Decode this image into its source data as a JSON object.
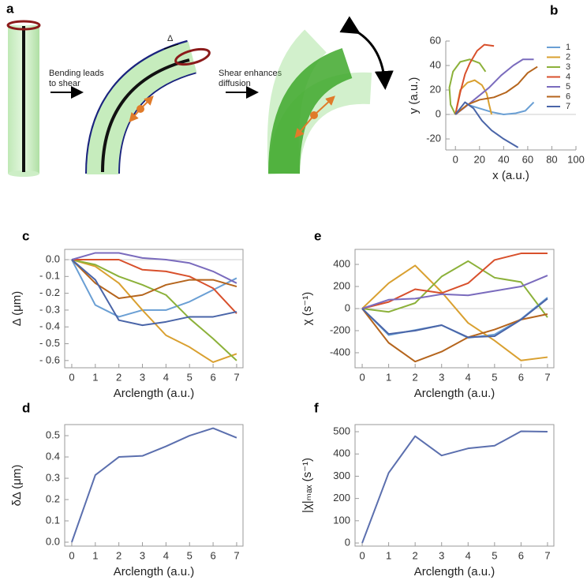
{
  "panel_a": {
    "label": "a",
    "step1": [
      "Bending leads",
      "to shear"
    ],
    "step2": [
      "Shear enhances",
      "diffusion"
    ],
    "delta": "Δ"
  },
  "chart_data": [
    {
      "type": "line",
      "panel": "b",
      "x_label": "x (a.u.)",
      "y_label": "y (a.u.)",
      "xlim": [
        -8,
        100
      ],
      "ylim": [
        -29,
        60
      ],
      "xticks": [
        0,
        20,
        40,
        60,
        80,
        100
      ],
      "yticks": [
        -20,
        0,
        20,
        40,
        60
      ],
      "frame": false,
      "zero_line": true,
      "legend": "top-right",
      "series": [
        {
          "name": "1",
          "color": "#6a9fd4",
          "x": [
            0,
            10,
            20,
            30,
            40,
            50,
            58,
            65
          ],
          "values": [
            0,
            8,
            5,
            2,
            0,
            1,
            3,
            10
          ]
        },
        {
          "name": "2",
          "color": "#d9a030",
          "x": [
            0,
            4,
            10,
            16,
            22,
            26,
            28,
            30
          ],
          "values": [
            0,
            20,
            26,
            28,
            24,
            17,
            8,
            0
          ]
        },
        {
          "name": "3",
          "color": "#8cb13a",
          "x": [
            0,
            -4,
            -5,
            -2,
            4,
            12,
            20,
            25
          ],
          "values": [
            0,
            8,
            22,
            35,
            43,
            45,
            42,
            35
          ]
        },
        {
          "name": "4",
          "color": "#d8502c",
          "x": [
            0,
            4,
            8,
            12,
            18,
            24,
            32
          ],
          "values": [
            0,
            18,
            33,
            42,
            52,
            57,
            56
          ]
        },
        {
          "name": "5",
          "color": "#7a6bbd",
          "x": [
            0,
            8,
            18,
            28,
            38,
            48,
            56,
            65
          ],
          "values": [
            0,
            6,
            14,
            22,
            32,
            40,
            45,
            45
          ]
        },
        {
          "name": "6",
          "color": "#b5651d",
          "x": [
            0,
            10,
            20,
            32,
            42,
            52,
            60,
            68
          ],
          "values": [
            0,
            8,
            12,
            14,
            18,
            25,
            34,
            39
          ]
        },
        {
          "name": "7",
          "color": "#4a65a8",
          "x": [
            0,
            8,
            15,
            22,
            30,
            40,
            52
          ],
          "values": [
            0,
            10,
            5,
            -5,
            -13,
            -20,
            -27
          ]
        }
      ]
    },
    {
      "type": "line",
      "panel": "c",
      "x_label": "Arclength (a.u.)",
      "y_label": "Δ (μm)",
      "x": [
        0,
        1,
        2,
        3,
        4,
        5,
        6,
        7
      ],
      "xlim": [
        -0.3,
        7.27
      ],
      "ylim": [
        -0.643,
        0.061
      ],
      "xticks": [
        0,
        1,
        2,
        3,
        4,
        5,
        6,
        7
      ],
      "yticks": [
        {
          "value": 0,
          "label": "0.0"
        },
        {
          "value": -0.1,
          "label": "- 0.1"
        },
        {
          "value": -0.2,
          "label": "- 0.2"
        },
        {
          "value": -0.3,
          "label": "- 0.3"
        },
        {
          "value": -0.4,
          "label": "- 0.4"
        },
        {
          "value": -0.5,
          "label": "- 0.5"
        },
        {
          "value": -0.6,
          "label": "- 0.6"
        }
      ],
      "frame": true,
      "zero_line": true,
      "series": [
        {
          "color": "#6a9fd4",
          "values": [
            0,
            -0.27,
            -0.34,
            -0.3,
            -0.3,
            -0.25,
            -0.18,
            -0.11
          ]
        },
        {
          "color": "#d9a030",
          "values": [
            0,
            -0.04,
            -0.14,
            -0.3,
            -0.45,
            -0.52,
            -0.61,
            -0.56
          ]
        },
        {
          "color": "#8cb13a",
          "values": [
            0,
            -0.03,
            -0.1,
            -0.15,
            -0.21,
            -0.35,
            -0.47,
            -0.6
          ]
        },
        {
          "color": "#d8502c",
          "values": [
            0,
            0.0,
            0.0,
            -0.06,
            -0.07,
            -0.1,
            -0.17,
            -0.32
          ]
        },
        {
          "color": "#7a6bbd",
          "values": [
            0,
            0.04,
            0.04,
            0.01,
            0.0,
            -0.02,
            -0.07,
            -0.14
          ]
        },
        {
          "color": "#b5651d",
          "values": [
            0,
            -0.14,
            -0.23,
            -0.21,
            -0.15,
            -0.12,
            -0.12,
            -0.16
          ]
        },
        {
          "color": "#4a65a8",
          "values": [
            0,
            -0.12,
            -0.36,
            -0.39,
            -0.37,
            -0.34,
            -0.34,
            -0.31
          ]
        }
      ]
    },
    {
      "type": "line",
      "panel": "d",
      "x_label": "Arclength (a.u.)",
      "y_label": "δΔ (μm)",
      "x": [
        0,
        1,
        2,
        3,
        4,
        5,
        6,
        7
      ],
      "xlim": [
        -0.3,
        7.27
      ],
      "ylim": [
        -0.0185,
        0.552
      ],
      "xticks": [
        0,
        1,
        2,
        3,
        4,
        5,
        6,
        7
      ],
      "yticks": [
        {
          "value": 0,
          "label": "0.0"
        },
        0.1,
        0.2,
        0.3,
        0.4,
        0.5
      ],
      "frame": true,
      "zero_line": false,
      "series": [
        {
          "color": "#5b6fae",
          "values": [
            0,
            0.315,
            0.4,
            0.405,
            0.45,
            0.5,
            0.535,
            0.49
          ]
        }
      ]
    },
    {
      "type": "line",
      "panel": "e",
      "x_label": "Arclength (a.u.)",
      "y_label": "χ (s⁻¹)",
      "x": [
        0,
        1,
        2,
        3,
        4,
        5,
        6,
        7
      ],
      "xlim": [
        -0.27,
        7.24
      ],
      "ylim": [
        -536,
        536
      ],
      "xticks": [
        0,
        1,
        2,
        3,
        4,
        5,
        6,
        7
      ],
      "yticks": [
        -400,
        -200,
        0,
        200,
        400
      ],
      "frame": true,
      "zero_line": true,
      "series": [
        {
          "color": "#6a9fd4",
          "values": [
            0,
            -240,
            -195,
            -150,
            -265,
            -235,
            -95,
            100
          ]
        },
        {
          "color": "#d9a030",
          "values": [
            0,
            230,
            390,
            150,
            -130,
            -290,
            -470,
            -440
          ]
        },
        {
          "color": "#8cb13a",
          "values": [
            0,
            -30,
            50,
            290,
            430,
            280,
            240,
            -80
          ]
        },
        {
          "color": "#d8502c",
          "values": [
            0,
            60,
            175,
            140,
            230,
            440,
            500,
            500
          ]
        },
        {
          "color": "#7a6bbd",
          "values": [
            0,
            80,
            90,
            130,
            120,
            160,
            200,
            300
          ]
        },
        {
          "color": "#b5651d",
          "values": [
            0,
            -310,
            -480,
            -390,
            -260,
            -190,
            -100,
            -50
          ]
        },
        {
          "color": "#4a65a8",
          "values": [
            0,
            -230,
            -200,
            -150,
            -260,
            -250,
            -100,
            90
          ]
        }
      ]
    },
    {
      "type": "line",
      "panel": "f",
      "x_label": "Arclength (a.u.)",
      "y_label": "|χ|ₘₐₓ (s⁻¹)",
      "x": [
        0,
        1,
        2,
        3,
        4,
        5,
        6,
        7
      ],
      "xlim": [
        -0.27,
        7.24
      ],
      "ylim": [
        -14,
        532
      ],
      "xticks": [
        0,
        1,
        2,
        3,
        4,
        5,
        6,
        7
      ],
      "yticks": [
        0,
        100,
        200,
        300,
        400,
        500
      ],
      "frame": true,
      "zero_line": false,
      "series": [
        {
          "color": "#5b6fae",
          "values": [
            0,
            315,
            480,
            393,
            425,
            437,
            502,
            500
          ]
        }
      ]
    }
  ]
}
